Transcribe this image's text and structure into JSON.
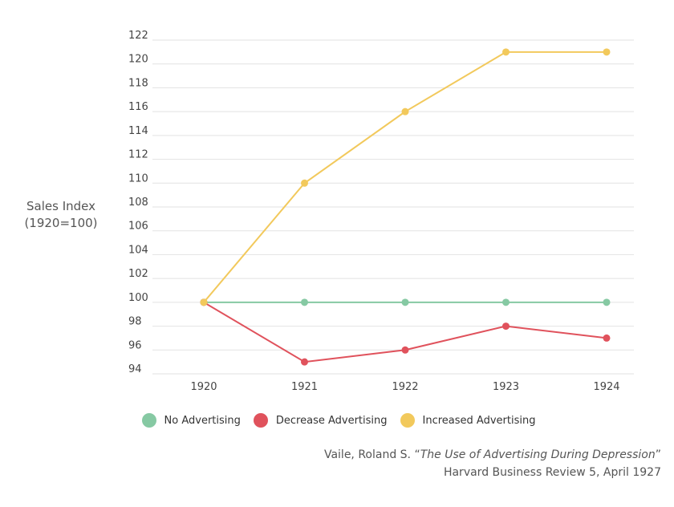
{
  "chart_data": {
    "type": "line",
    "x": [
      "1920",
      "1921",
      "1922",
      "1923",
      "1924"
    ],
    "ylabel": [
      "Sales Index",
      "(1920=100)"
    ],
    "ylim": [
      94,
      122
    ],
    "yticks": [
      94,
      96,
      98,
      100,
      102,
      104,
      106,
      108,
      110,
      112,
      114,
      116,
      118,
      120,
      122
    ],
    "grid": true,
    "legend_position": "bottom-center",
    "series": [
      {
        "name": "No Advertising",
        "color": "#86c9a3",
        "values": [
          100,
          100,
          100,
          100,
          100
        ]
      },
      {
        "name": "Decrease Advertising",
        "color": "#e0525c",
        "values": [
          100,
          95,
          96,
          98,
          97
        ]
      },
      {
        "name": "Increased Advertising",
        "color": "#f2c95c",
        "values": [
          100,
          110,
          116,
          121,
          121
        ]
      }
    ]
  },
  "source": {
    "prefix": "Vaile, Roland S. “",
    "title": "The Use of Advertising During Depression",
    "suffix": "”",
    "line2": "Harvard Business Review 5, April 1927"
  }
}
